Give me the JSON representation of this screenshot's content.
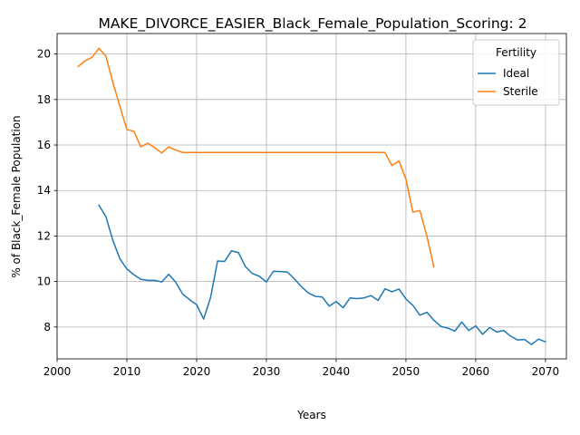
{
  "chart_data": {
    "type": "line",
    "title": "MAKE_DIVORCE_EASIER_Black_Female_Population_Scoring: 2",
    "xlabel": "Years",
    "ylabel": "% of Black_Female Population",
    "xlim": [
      2000,
      2073
    ],
    "ylim": [
      6.6,
      20.9
    ],
    "xticks": [
      2000,
      2010,
      2020,
      2030,
      2040,
      2050,
      2060,
      2070
    ],
    "yticks": [
      8,
      10,
      12,
      14,
      16,
      18,
      20
    ],
    "grid": true,
    "legend": {
      "title": "Fertility",
      "placement": "top-right"
    },
    "series": [
      {
        "name": "Ideal",
        "color": "#1f77b4",
        "x": [
          2006,
          2007,
          2008,
          2009,
          2010,
          2011,
          2012,
          2013,
          2014,
          2015,
          2016,
          2017,
          2018,
          2019,
          2020,
          2021,
          2022,
          2023,
          2024,
          2025,
          2026,
          2027,
          2028,
          2029,
          2030,
          2031,
          2032,
          2033,
          2034,
          2035,
          2036,
          2037,
          2038,
          2039,
          2040,
          2041,
          2042,
          2043,
          2044,
          2045,
          2046,
          2047,
          2048,
          2049,
          2050,
          2051,
          2052,
          2053,
          2054,
          2055,
          2056,
          2057,
          2058,
          2059,
          2060,
          2061,
          2062,
          2063,
          2064,
          2065,
          2066,
          2067,
          2068,
          2069,
          2070
        ],
        "y": [
          13.35,
          12.85,
          11.8,
          11.0,
          10.55,
          10.3,
          10.1,
          10.05,
          10.05,
          9.98,
          10.32,
          9.97,
          9.45,
          9.2,
          8.98,
          8.35,
          9.3,
          10.9,
          10.88,
          11.35,
          11.27,
          10.65,
          10.35,
          10.23,
          9.98,
          10.45,
          10.44,
          10.42,
          10.12,
          9.78,
          9.5,
          9.35,
          9.32,
          8.92,
          9.12,
          8.85,
          9.28,
          9.25,
          9.28,
          9.38,
          9.17,
          9.68,
          9.55,
          9.67,
          9.23,
          8.95,
          8.52,
          8.65,
          8.3,
          8.03,
          7.95,
          7.82,
          8.22,
          7.85,
          8.05,
          7.68,
          7.98,
          7.78,
          7.85,
          7.6,
          7.43,
          7.45,
          7.23,
          7.47,
          7.35
        ]
      },
      {
        "name": "Sterile",
        "color": "#ff7f0e",
        "x": [
          2003,
          2004,
          2005,
          2006,
          2007,
          2008,
          2009,
          2010,
          2011,
          2012,
          2013,
          2014,
          2015,
          2016,
          2017,
          2018,
          2019,
          2020,
          2021,
          2022,
          2023,
          2024,
          2025,
          2026,
          2027,
          2028,
          2029,
          2030,
          2031,
          2032,
          2033,
          2034,
          2035,
          2036,
          2037,
          2038,
          2039,
          2040,
          2041,
          2042,
          2043,
          2044,
          2045,
          2046,
          2047,
          2048,
          2049,
          2050,
          2051,
          2052,
          2053,
          2054
        ],
        "y": [
          19.45,
          19.7,
          19.85,
          20.25,
          19.9,
          18.75,
          17.7,
          16.68,
          16.6,
          15.92,
          16.08,
          15.88,
          15.65,
          15.92,
          15.78,
          15.67,
          15.67,
          15.67,
          15.67,
          15.67,
          15.67,
          15.67,
          15.67,
          15.67,
          15.67,
          15.67,
          15.67,
          15.67,
          15.67,
          15.67,
          15.67,
          15.67,
          15.67,
          15.67,
          15.67,
          15.67,
          15.67,
          15.67,
          15.67,
          15.67,
          15.67,
          15.67,
          15.67,
          15.67,
          15.67,
          15.1,
          15.3,
          14.5,
          13.05,
          13.12,
          12.0,
          10.65
        ]
      }
    ]
  }
}
